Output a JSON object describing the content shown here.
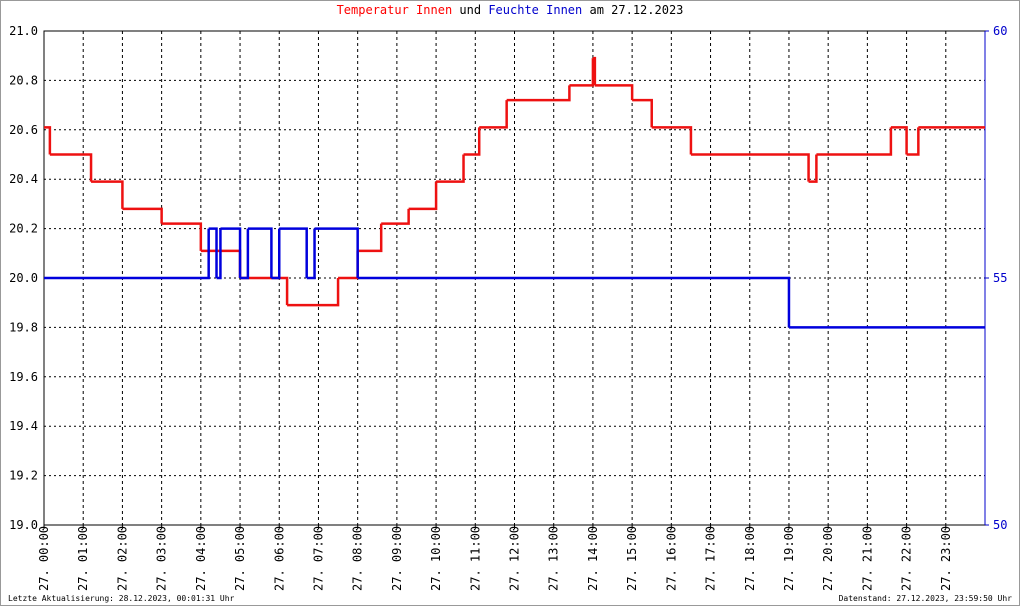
{
  "chart_data": {
    "type": "line",
    "step": true,
    "title": [
      {
        "text": "Temperatur Innen",
        "color": "#ff0000"
      },
      {
        "text": "und",
        "color": "#000000"
      },
      {
        "text": "Feuchte Innen",
        "color": "#0000cc"
      },
      {
        "text": "am 27.12.2023",
        "color": "#000000"
      }
    ],
    "footer_left": "Letzte Aktualisierung: 28.12.2023, 00:01:31 Uhr",
    "footer_right": "Datenstand: 27.12.2023, 23:59:50 Uhr",
    "grid": true,
    "xlim": [
      0,
      24
    ],
    "xticks": [
      {
        "value": 0,
        "label": "27. 00:00"
      },
      {
        "value": 1,
        "label": "27. 01:00"
      },
      {
        "value": 2,
        "label": "27. 02:00"
      },
      {
        "value": 3,
        "label": "27. 03:00"
      },
      {
        "value": 4,
        "label": "27. 04:00"
      },
      {
        "value": 5,
        "label": "27. 05:00"
      },
      {
        "value": 6,
        "label": "27. 06:00"
      },
      {
        "value": 7,
        "label": "27. 07:00"
      },
      {
        "value": 8,
        "label": "27. 08:00"
      },
      {
        "value": 9,
        "label": "27. 09:00"
      },
      {
        "value": 10,
        "label": "27. 10:00"
      },
      {
        "value": 11,
        "label": "27. 11:00"
      },
      {
        "value": 12,
        "label": "27. 12:00"
      },
      {
        "value": 13,
        "label": "27. 13:00"
      },
      {
        "value": 14,
        "label": "27. 14:00"
      },
      {
        "value": 15,
        "label": "27. 15:00"
      },
      {
        "value": 16,
        "label": "27. 16:00"
      },
      {
        "value": 17,
        "label": "27. 17:00"
      },
      {
        "value": 18,
        "label": "27. 18:00"
      },
      {
        "value": 19,
        "label": "27. 19:00"
      },
      {
        "value": 20,
        "label": "27. 20:00"
      },
      {
        "value": 21,
        "label": "27. 21:00"
      },
      {
        "value": 22,
        "label": "27. 22:00"
      },
      {
        "value": 23,
        "label": "27. 23:00"
      }
    ],
    "ylim": [
      19,
      21
    ],
    "yticks": [
      {
        "value": 19,
        "label": "19.0"
      },
      19.2,
      19.4,
      19.6,
      19.8,
      {
        "value": 20,
        "label": "20.0"
      },
      20.2,
      20.4,
      20.6,
      20.8,
      {
        "value": 21,
        "label": "21.0"
      }
    ],
    "y2lim": [
      50,
      60
    ],
    "y2ticks": [
      50,
      55,
      60
    ],
    "series": [
      {
        "color": "#ee1111",
        "x": [
          0,
          0.15,
          1.2,
          2.0,
          3.0,
          4.0,
          5.0,
          6.2,
          7.5,
          8.0,
          8.6,
          9.3,
          10.0,
          10.7,
          11.1,
          11.8,
          13.4,
          14.0,
          14.05,
          15.0,
          15.5,
          16.5,
          19.5,
          19.7,
          21.6,
          22.0,
          22.3,
          24
        ],
        "values": [
          20.61,
          20.5,
          20.39,
          20.28,
          20.22,
          20.11,
          20.0,
          19.89,
          20.0,
          20.11,
          20.22,
          20.28,
          20.39,
          20.5,
          20.61,
          20.72,
          20.78,
          20.89,
          20.78,
          20.72,
          20.61,
          20.5,
          20.39,
          20.5,
          20.61,
          20.5,
          20.61,
          20.61
        ]
      },
      {
        "color": "#0000dd",
        "axis": "y2",
        "x": [
          0,
          4.2,
          4.4,
          4.5,
          5.0,
          5.2,
          5.8,
          6.0,
          6.7,
          6.9,
          8.0,
          19.0,
          24
        ],
        "values": [
          55,
          56,
          55,
          56,
          55,
          56,
          55,
          56,
          55,
          56,
          55,
          54,
          54
        ]
      }
    ]
  }
}
